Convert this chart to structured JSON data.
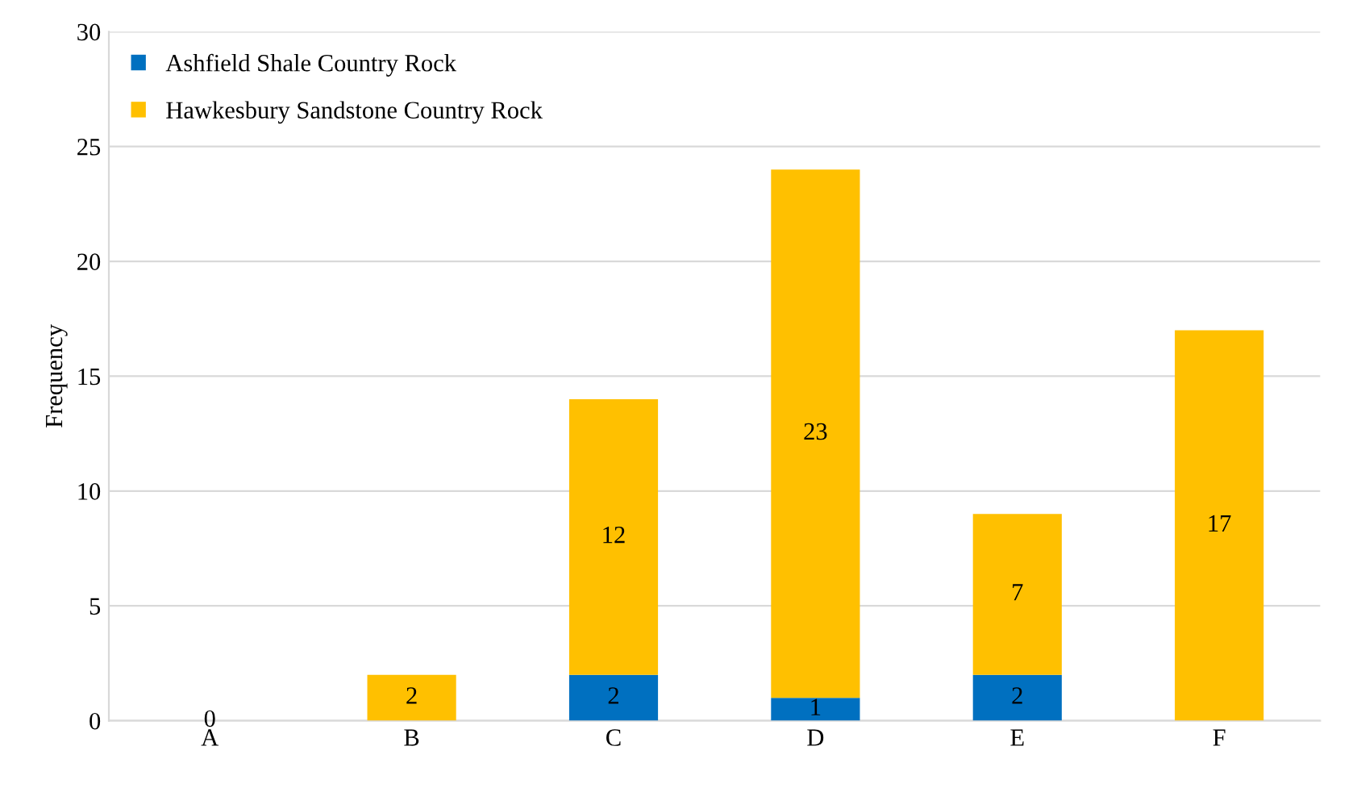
{
  "chart_data": {
    "type": "bar",
    "stacked": true,
    "ylabel": "Frequency",
    "categories": [
      "A",
      "B",
      "C",
      "D",
      "E",
      "F"
    ],
    "series": [
      {
        "name": "Ashfield Shale Country Rock",
        "color": "#0070c0",
        "values": [
          0,
          0,
          2,
          1,
          2,
          0
        ],
        "value_labels": [
          "0",
          null,
          "2",
          "1",
          "2",
          null
        ]
      },
      {
        "name": "Hawkesbury Sandstone Country Rock",
        "color": "#ffc000",
        "values": [
          0,
          2,
          12,
          23,
          7,
          17
        ],
        "value_labels": [
          null,
          "2",
          "12",
          "23",
          "7",
          "17"
        ]
      }
    ],
    "ylim": [
      0,
      30
    ],
    "yticks": [
      0,
      5,
      10,
      15,
      20,
      25,
      30
    ],
    "grid": "y",
    "legend": "top left"
  }
}
